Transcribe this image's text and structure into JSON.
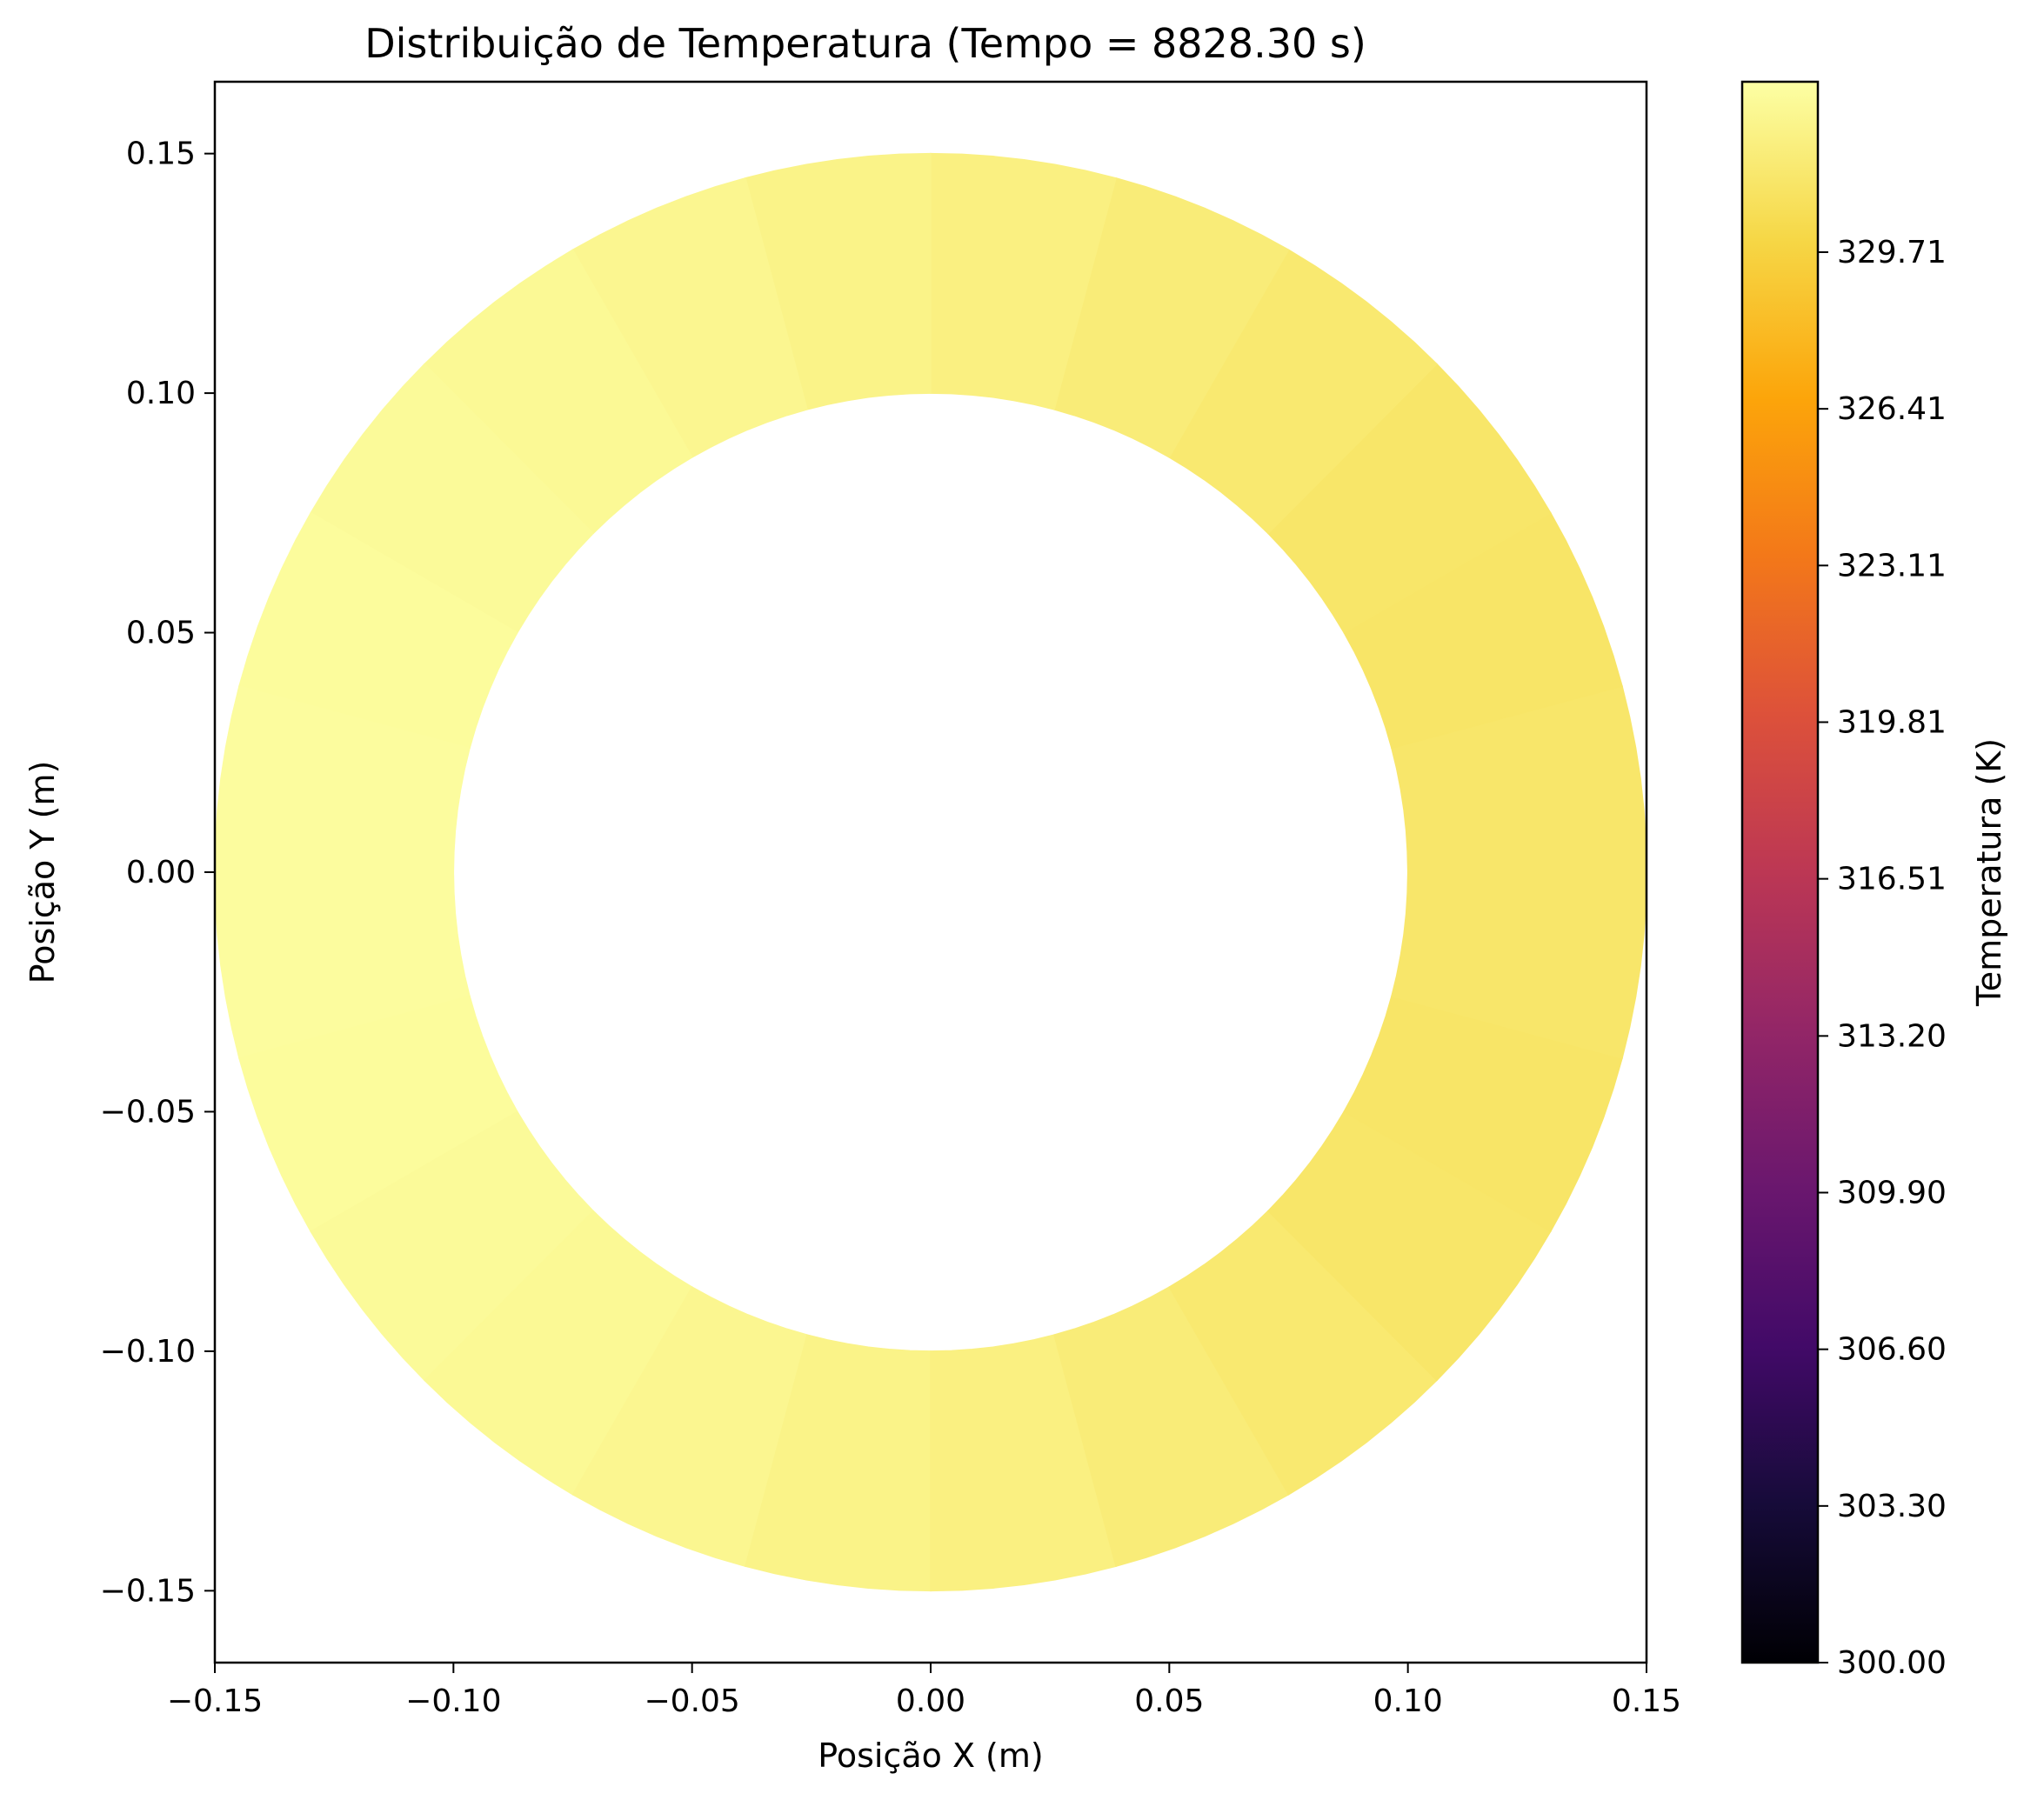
{
  "chart_data": {
    "type": "heatmap",
    "title": "Distribuição de Temperatura (Tempo = 8828.30 s)",
    "xlabel": "Posição X (m)",
    "ylabel": "Posição Y (m)",
    "xlim": [
      -0.15,
      0.15
    ],
    "ylim": [
      -0.165,
      0.165
    ],
    "x_ticks": [
      -0.15,
      -0.1,
      -0.05,
      0.0,
      0.05,
      0.1,
      0.15
    ],
    "x_tick_labels": [
      "−0.15",
      "−0.10",
      "−0.05",
      "0.00",
      "0.05",
      "0.10",
      "0.15"
    ],
    "y_ticks": [
      0.15,
      0.1,
      0.05,
      0.0,
      -0.05,
      -0.1,
      -0.15
    ],
    "y_tick_labels": [
      "0.15",
      "0.10",
      "0.05",
      "0.00",
      "−0.05",
      "−0.10",
      "−0.15"
    ],
    "domain": {
      "shape": "annulus",
      "inner_radius": 0.1,
      "outer_radius": 0.15
    },
    "field": {
      "description_of_series": "temperature by polar angle (degrees), angles counter-clockwise from +x",
      "angles_deg": [
        0,
        30,
        60,
        90,
        120,
        150,
        180,
        210,
        240,
        270,
        300,
        330
      ],
      "values": [
        331.3,
        331.1,
        331.6,
        332.2,
        332.7,
        333.0,
        333.1,
        333.0,
        332.7,
        332.2,
        331.6,
        331.1
      ]
    },
    "colorbar": {
      "label": "Temperatura (K)",
      "colormap": "inferno",
      "vmin": 300.0,
      "vmax": 333.3,
      "ticks": [
        300.0,
        303.3,
        306.6,
        309.9,
        313.2,
        316.51,
        319.81,
        323.11,
        326.41,
        329.71
      ],
      "tick_labels": [
        "300.00",
        "303.30",
        "306.60",
        "309.90",
        "313.20",
        "316.51",
        "319.81",
        "323.11",
        "326.41",
        "329.71"
      ]
    }
  }
}
